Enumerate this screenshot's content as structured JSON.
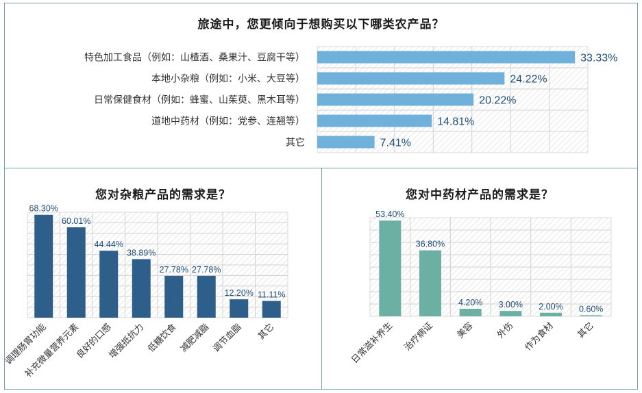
{
  "chart_data": [
    {
      "type": "bar",
      "orientation": "horizontal",
      "title": "旅途中，您更倾向于想购买以下哪类农产品？",
      "categories": [
        "特色加工食品（例如：山楂酒、桑果汁、豆腐干等）",
        "本地小杂粮（例如：小米、大豆等）",
        "日常保健食材（例如：蜂蜜、山茱萸、黑木耳等）",
        "道地中药材（例如：党参、连翘等）",
        "其它"
      ],
      "values": [
        33.33,
        24.22,
        20.22,
        14.81,
        7.41
      ],
      "value_labels": [
        "33.33%",
        "24.22%",
        "20.22%",
        "14.81%",
        "7.41%"
      ],
      "xlim": [
        0,
        35
      ],
      "grid": true,
      "color": "#6fb1db"
    },
    {
      "type": "bar",
      "title": "您对杂粮产品的需求是？",
      "categories": [
        "调理肠胃功能",
        "补充微量营养元素",
        "良好的口感",
        "增强抵抗力",
        "低糖饮食",
        "减肥减脂",
        "调节血脂",
        "其它"
      ],
      "values": [
        68.3,
        60.01,
        44.44,
        38.89,
        27.78,
        27.78,
        12.2,
        11.11
      ],
      "value_labels": [
        "68.30%",
        "60.01%",
        "44.44%",
        "38.89%",
        "27.78%",
        "27.78%",
        "12.20%",
        "11.11%"
      ],
      "ylim": [
        0,
        70
      ],
      "grid": true,
      "color": "#2e5f8a"
    },
    {
      "type": "bar",
      "title": "您对中药材产品的需求是？",
      "categories": [
        "日常滋补养生",
        "治疗病证",
        "美容",
        "外伤",
        "作为食材",
        "其它"
      ],
      "values": [
        53.4,
        36.8,
        4.2,
        3.0,
        2.0,
        0.6
      ],
      "value_labels": [
        "53.40%",
        "36.80%",
        "4.20%",
        "3.00%",
        "2.00%",
        "0.60%"
      ],
      "ylim": [
        0,
        55
      ],
      "grid": true,
      "color": "#6bb0a3"
    }
  ]
}
